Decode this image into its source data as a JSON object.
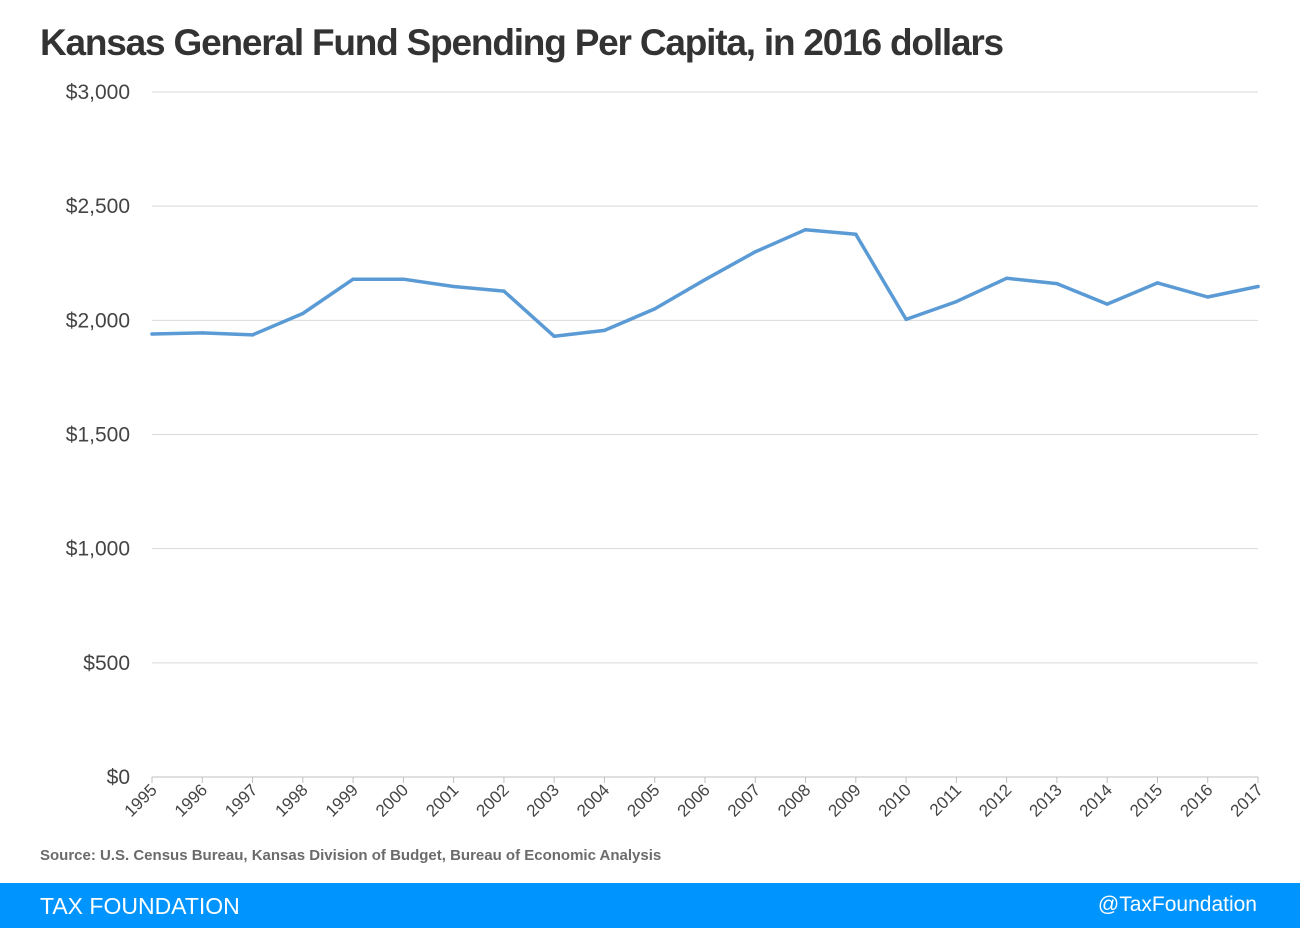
{
  "chart_data": {
    "type": "line",
    "title": "Kansas General Fund Spending Per Capita, in 2016 dollars",
    "xlabel": "",
    "ylabel": "",
    "categories": [
      "1995",
      "1996",
      "1997",
      "1998",
      "1999",
      "2000",
      "2001",
      "2002",
      "2003",
      "2004",
      "2005",
      "2006",
      "2007",
      "2008",
      "2009",
      "2010",
      "2011",
      "2012",
      "2013",
      "2014",
      "2015",
      "2016",
      "2017"
    ],
    "series": [
      {
        "values": [
          1940,
          1945,
          1936,
          2030,
          2180,
          2180,
          2148,
          2128,
          1930,
          1956,
          2050,
          2178,
          2300,
          2397,
          2377,
          2004,
          2082,
          2184,
          2161,
          2071,
          2164,
          2102,
          2148
        ],
        "color": "#5b9bd5"
      }
    ],
    "ylim": [
      0,
      3000
    ],
    "yticks": [
      0,
      500,
      1000,
      1500,
      2000,
      2500,
      3000
    ],
    "ytick_labels": [
      "$0",
      "$500",
      "$1,000",
      "$1,500",
      "$2,000",
      "$2,500",
      "$3,000"
    ],
    "grid": true,
    "gridline_color": "#d9d9d9"
  },
  "source": "Source: U.S. Census Bureau, Kansas Division of Budget, Bureau of Economic Analysis",
  "footer": {
    "brand": "TAX FOUNDATION",
    "handle": "@TaxFoundation",
    "color": "#0094ff"
  }
}
